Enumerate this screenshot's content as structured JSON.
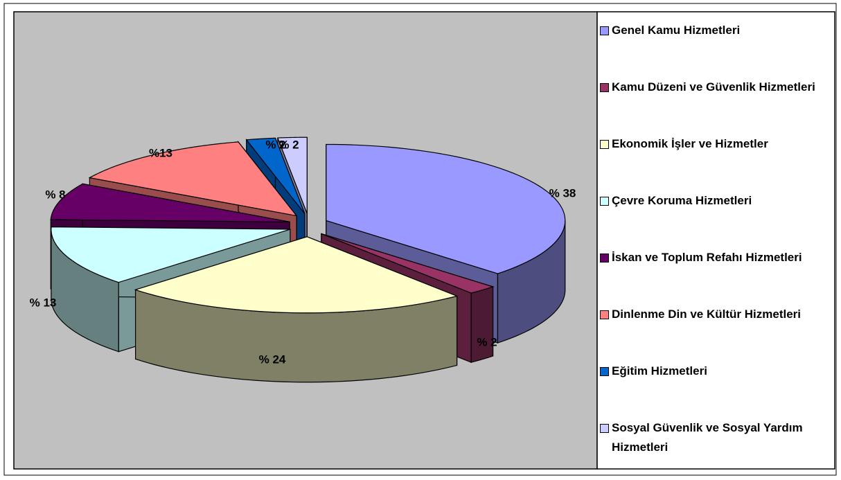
{
  "chart_data": {
    "type": "pie",
    "categories": [
      "Genel Kamu Hizmetleri",
      "Kamu Düzeni ve Güvenlik Hizmetleri",
      "Ekonomik İşler ve Hizmetler",
      "Çevre Koruma Hizmetleri",
      "İskan ve Toplum Refahı Hizmetleri",
      "Dinlenme Din ve Kültür Hizmetleri",
      "Eğitim Hizmetleri",
      "Sosyal Güvenlik ve Sosyal Yardım Hizmetleri"
    ],
    "values": [
      38,
      2,
      24,
      13,
      8,
      13,
      2,
      2
    ],
    "value_labels": [
      "% 38",
      "% 2",
      "% 24",
      "% 13",
      "% 8",
      "%13",
      "% 2",
      "% 2"
    ],
    "colors": [
      "#9999ff",
      "#993366",
      "#ffffcc",
      "#ccffff",
      "#660066",
      "#ff8080",
      "#0066cc",
      "#ccccff"
    ],
    "legend": "right"
  }
}
